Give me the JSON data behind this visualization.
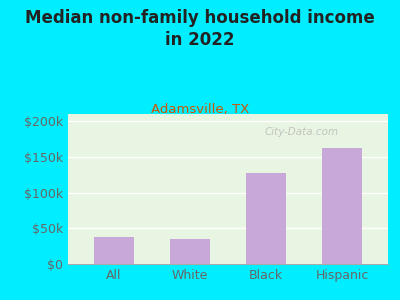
{
  "title": "Median non-family household income\nin 2022",
  "subtitle": "Adamsville, TX",
  "categories": [
    "All",
    "White",
    "Black",
    "Hispanic"
  ],
  "values": [
    38000,
    35000,
    128000,
    163000
  ],
  "bar_color": "#c8a8d8",
  "title_fontsize": 12,
  "subtitle_fontsize": 9.5,
  "subtitle_color": "#cc5500",
  "title_color": "#222222",
  "bg_outer": "#00eeff",
  "bg_plot": "#e8f5e2",
  "ylim": [
    0,
    210000
  ],
  "yticks": [
    0,
    50000,
    100000,
    150000,
    200000
  ],
  "tick_label_color": "#666666",
  "watermark": "City-Data.com"
}
